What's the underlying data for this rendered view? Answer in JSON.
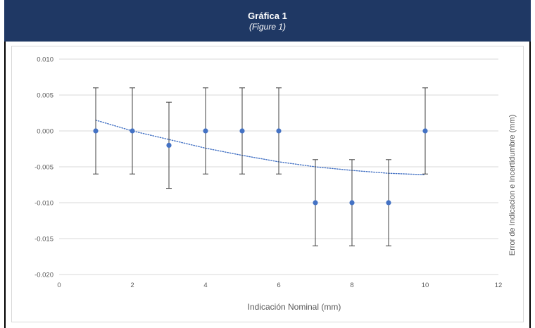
{
  "header": {
    "title": "Gráfica 1",
    "subtitle": "(Figure 1)"
  },
  "chart_data": {
    "type": "scatter",
    "title": "",
    "xlabel": "Indicación Nominal (mm)",
    "ylabel": "Error de Indicacion e Incertidumbre (mm)",
    "xlim": [
      0,
      12
    ],
    "ylim": [
      -0.02,
      0.01
    ],
    "x_ticks": [
      "0",
      "2",
      "4",
      "6",
      "8",
      "10",
      "12"
    ],
    "y_ticks": [
      "0.010",
      "0.005",
      "0.000",
      "-0.005",
      "-0.010",
      "-0.015",
      "-0.020"
    ],
    "grid": true,
    "legend": "none",
    "series": [
      {
        "x": [
          1,
          2,
          3,
          4,
          5,
          6,
          7,
          8,
          9,
          10
        ],
        "y": [
          0.0,
          0.0,
          -0.002,
          0.0,
          0.0,
          0.0,
          -0.01,
          -0.01,
          -0.01,
          0.0
        ],
        "error": [
          0.006,
          0.006,
          0.006,
          0.006,
          0.006,
          0.006,
          0.006,
          0.006,
          0.006,
          0.006
        ],
        "color": "#4472c4"
      }
    ],
    "trendline": {
      "type": "polynomial",
      "x": [
        1,
        2,
        3,
        4,
        5,
        6,
        7,
        8,
        9,
        10
      ],
      "y": [
        0.0015,
        0.0,
        -0.0012,
        -0.0024,
        -0.0034,
        -0.0043,
        -0.005,
        -0.0055,
        -0.0059,
        -0.0061
      ],
      "color": "#4472c4",
      "style": "dotted"
    },
    "colors": {
      "marker": "#4472c4",
      "errorbar": "#404040",
      "grid": "#d9d9d9",
      "tick_label": "#595959"
    }
  }
}
